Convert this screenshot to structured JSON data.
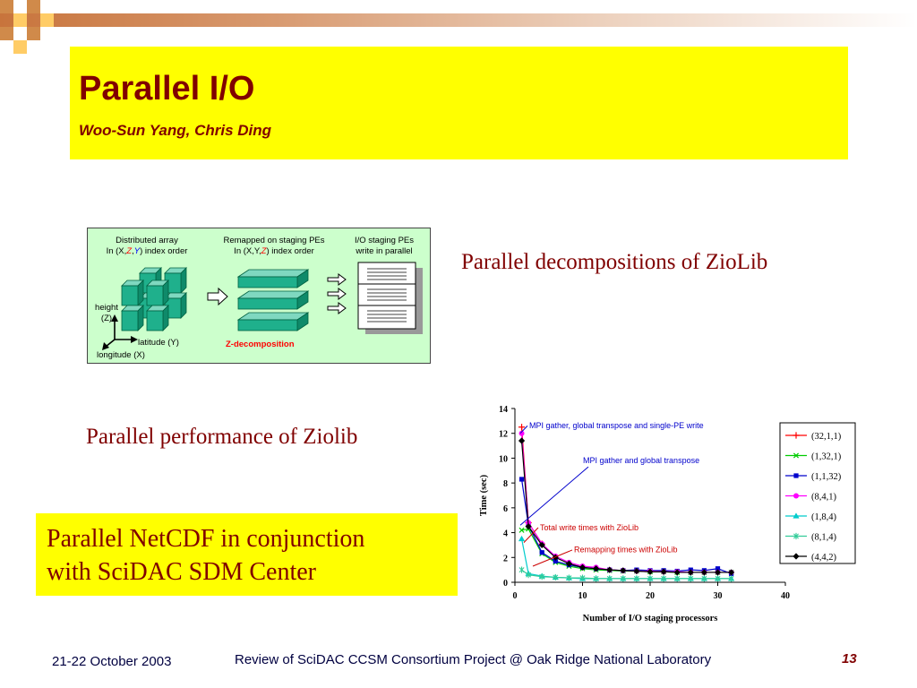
{
  "slide": {
    "title": "Parallel I/O",
    "subtitle": "Woo-Sun Yang, Chris Ding",
    "bullet_decomp": "Parallel decompositions of ZioLib",
    "bullet_perf": "Parallel performance of Ziolib",
    "netcdf_line1": "Parallel NetCDF in conjunction",
    "netcdf_line2": "with SciDAC SDM Center",
    "colors": {
      "title": "#800000",
      "highlight": "#ffff00",
      "diagram_bg": "#ccffcc",
      "cube": "#1fb08c"
    }
  },
  "diagram": {
    "col1_line1": "Distributed array",
    "col1_line2_a": "In (X,",
    "col1_line2_z": "Z",
    "col1_line2_b": ",",
    "col1_line2_y": "Y",
    "col1_line2_c": ") index order",
    "col2_line1": "Remapped on staging PEs",
    "col2_line2_a": "In (X,Y,",
    "col2_line2_z": "Z",
    "col2_line2_b": ") index order",
    "col3_line1": "I/O staging PEs",
    "col3_line2": "write in parallel",
    "height_label": "height",
    "z_label": "(Z)",
    "latitude_label": "latitude (Y)",
    "longitude_label": "longitude (X)",
    "zdecomp_label": "Z-decomposition"
  },
  "footer": {
    "date": "21-22 October 2003",
    "center": "Review of SciDAC CCSM Consortium Project @ Oak Ridge National Laboratory",
    "page": "13"
  },
  "chart_data": {
    "type": "line",
    "xlabel": "Number of I/O staging processors",
    "ylabel": "Time   (sec)",
    "xlim": [
      0,
      40
    ],
    "ylim": [
      0,
      14
    ],
    "xticks": [
      "0",
      "10",
      "20",
      "30",
      "40"
    ],
    "yticks": [
      "0",
      "2",
      "4",
      "6",
      "8",
      "10",
      "12",
      "14"
    ],
    "grid": false,
    "legend_position": "right",
    "annotations": [
      "MPI gather, global transpose and single-PE write",
      "MPI gather and global transpose",
      "Total write times with ZioLib",
      "Remapping times with ZioLib"
    ],
    "series": [
      {
        "name": "(32,1,1)",
        "color": "#ff0000",
        "marker": "plus",
        "x": [
          1,
          2,
          4
        ],
        "y": [
          12.5,
          4.8,
          3.1
        ]
      },
      {
        "name": "(1,32,1)",
        "color": "#00cc00",
        "marker": "x",
        "x": [
          1,
          2,
          4,
          6,
          8,
          10,
          12,
          14,
          16,
          18,
          20,
          22,
          24,
          26,
          28,
          30,
          32
        ],
        "y": [
          4.2,
          4.3,
          2.3,
          1.6,
          1.3,
          1.1,
          1.0,
          0.95,
          0.9,
          0.9,
          0.85,
          0.85,
          0.8,
          0.8,
          0.8,
          0.8,
          0.8
        ]
      },
      {
        "name": "(1,1,32)",
        "color": "#0000cc",
        "marker": "square",
        "x": [
          1,
          2,
          4,
          6,
          8,
          10,
          12,
          14,
          16,
          18,
          20,
          22,
          24,
          26,
          28,
          30,
          32
        ],
        "y": [
          8.3,
          4.6,
          2.4,
          1.7,
          1.4,
          1.2,
          1.1,
          1.0,
          0.95,
          1.0,
          0.95,
          0.95,
          0.9,
          1.0,
          0.95,
          1.1,
          0.7
        ]
      },
      {
        "name": "(8,4,1)",
        "color": "#ff00ff",
        "marker": "circle",
        "x": [
          1,
          2,
          4,
          6,
          8,
          10,
          12,
          14,
          16,
          18,
          20,
          22,
          24,
          26,
          28,
          30,
          32
        ],
        "y": [
          12.0,
          4.8,
          3.1,
          2.1,
          1.6,
          1.3,
          1.2,
          1.0,
          0.95,
          0.9,
          0.9,
          0.85,
          0.85,
          0.8,
          0.8,
          0.8,
          0.8
        ]
      },
      {
        "name": "(1,8,4)",
        "color": "#00cccc",
        "marker": "triangle",
        "x": [
          1,
          2,
          4,
          6,
          8,
          10,
          12,
          14,
          16,
          18,
          20,
          22,
          24,
          26,
          28,
          30,
          32
        ],
        "y": [
          3.5,
          0.7,
          0.5,
          0.4,
          0.35,
          0.3,
          0.3,
          0.3,
          0.3,
          0.3,
          0.3,
          0.3,
          0.3,
          0.3,
          0.3,
          0.3,
          0.3
        ]
      },
      {
        "name": "(8,1,4)",
        "color": "#33cc99",
        "marker": "star",
        "x": [
          1,
          2,
          4,
          6,
          8,
          10,
          12,
          14,
          16,
          18,
          20,
          22,
          24,
          26,
          28,
          30,
          32
        ],
        "y": [
          1.0,
          0.6,
          0.45,
          0.4,
          0.35,
          0.35,
          0.3,
          0.3,
          0.3,
          0.3,
          0.3,
          0.3,
          0.3,
          0.3,
          0.3,
          0.3,
          0.3
        ]
      },
      {
        "name": "(4,4,2)",
        "color": "#000000",
        "marker": "diamond",
        "x": [
          1,
          2,
          4,
          6,
          8,
          10,
          12,
          14,
          16,
          18,
          20,
          22,
          24,
          26,
          28,
          30,
          32
        ],
        "y": [
          11.4,
          4.5,
          3.0,
          2.0,
          1.5,
          1.2,
          1.1,
          1.0,
          0.95,
          0.9,
          0.85,
          0.85,
          0.8,
          0.8,
          0.8,
          0.8,
          0.8
        ]
      }
    ]
  }
}
